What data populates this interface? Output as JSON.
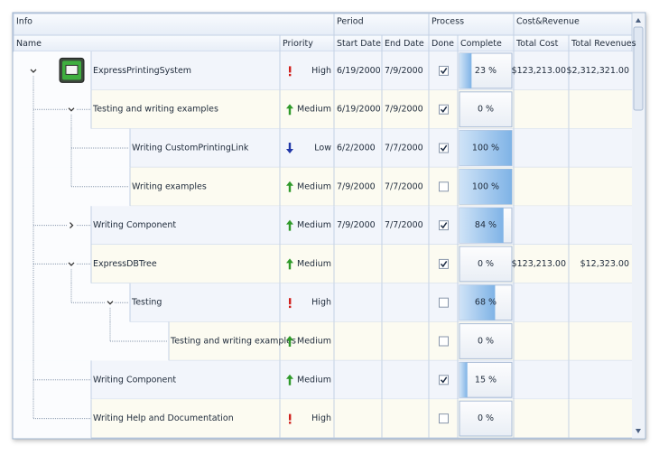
{
  "bands": [
    "Info",
    "Period",
    "Process",
    "Cost&Revenue"
  ],
  "columns": [
    "Name",
    "Priority",
    "Start Date",
    "End Date",
    "Done",
    "Complete",
    "Total Cost",
    "Total Revenues"
  ],
  "rows": [
    {
      "level": 0,
      "expanded": true,
      "name": "ExpressPrintingSystem",
      "priority": "High",
      "start": "6/19/2000",
      "end": "7/9/2000",
      "done": true,
      "complete": {
        "value": 23,
        "label": "23 %"
      },
      "cost": "$123,213.00",
      "revenue": "$2,312,321.00"
    },
    {
      "level": 1,
      "expanded": true,
      "name": "Testing and writing examples",
      "priority": "Medium",
      "start": "6/19/2000",
      "end": "7/9/2000",
      "done": true,
      "complete": {
        "value": 0,
        "label": "0 %"
      }
    },
    {
      "level": 2,
      "name": "Writing CustomPrintingLink",
      "priority": "Low",
      "start": "6/2/2000",
      "end": "7/7/2000",
      "done": true,
      "complete": {
        "value": 100,
        "label": "100 %"
      }
    },
    {
      "level": 2,
      "name": "Writing examples",
      "priority": "Medium",
      "start": "7/9/2000",
      "end": "7/7/2000",
      "done": false,
      "complete": {
        "value": 100,
        "label": "100 %"
      }
    },
    {
      "level": 1,
      "expanded": false,
      "name": "Writing Component",
      "priority": "Medium",
      "start": "7/9/2000",
      "end": "7/7/2000",
      "done": true,
      "complete": {
        "value": 84,
        "label": "84 %"
      }
    },
    {
      "level": 1,
      "expanded": true,
      "name": "ExpressDBTree",
      "priority": "Medium",
      "done": true,
      "complete": {
        "value": 0,
        "label": "0 %"
      },
      "cost": "$123,213.00",
      "revenue": "$12,323.00"
    },
    {
      "level": 2,
      "expanded": true,
      "name": "Testing",
      "priority": "High",
      "done": false,
      "complete": {
        "value": 68,
        "label": "68 %"
      }
    },
    {
      "level": 3,
      "name": "Testing and writing examples",
      "priority": "Medium",
      "done": false,
      "complete": {
        "value": 0,
        "label": "0 %"
      }
    },
    {
      "level": 1,
      "name": "Writing Component",
      "priority": "Medium",
      "done": true,
      "complete": {
        "value": 15,
        "label": "15 %"
      }
    },
    {
      "level": 1,
      "name": "Writing Help and Documentation",
      "priority": "High",
      "done": false,
      "complete": {
        "value": 0,
        "label": "0 %"
      }
    }
  ]
}
